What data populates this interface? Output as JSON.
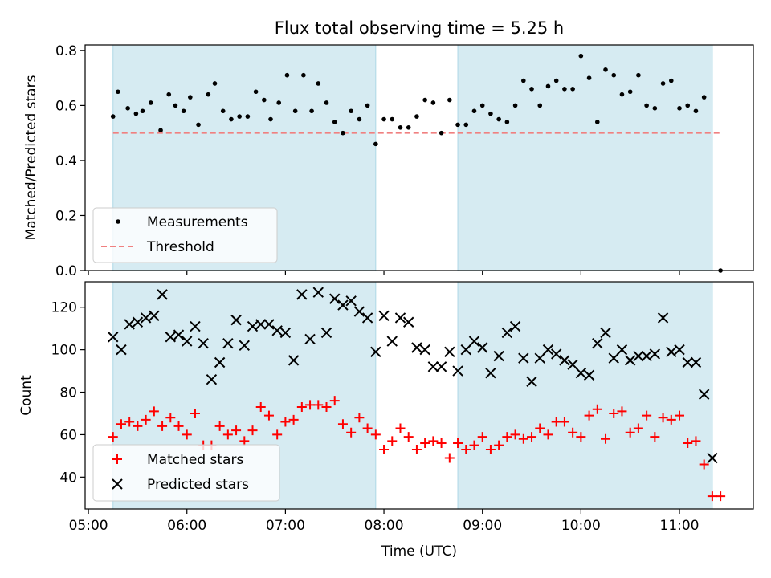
{
  "title": "Flux total observing time = 5.25 h",
  "colors": {
    "shade": "#add8e6",
    "threshold": "#f08080",
    "measurement": "#000000",
    "matched": "#ff0000",
    "predicted": "#000000"
  },
  "chart_data": [
    {
      "type": "scatter",
      "panel": "top",
      "ylabel": "Matched/Predicted stars",
      "xlabel": "",
      "xlim": [
        "04:58",
        "11:45"
      ],
      "ylim": [
        0,
        0.82
      ],
      "yticks": [
        0.0,
        0.2,
        0.4,
        0.6,
        0.8
      ],
      "ytick_labels": [
        "0.0",
        "0.2",
        "0.4",
        "0.6",
        "0.8"
      ],
      "shaded_intervals": [
        [
          "05:15",
          "07:55"
        ],
        [
          "08:45",
          "11:20"
        ]
      ],
      "legend": {
        "position": "lower-left",
        "entries": [
          "Measurements",
          "Threshold"
        ]
      },
      "threshold": {
        "name": "Threshold",
        "value": 0.5,
        "x_range": [
          "05:15",
          "11:25"
        ],
        "style": "dashed"
      },
      "series": [
        {
          "name": "Measurements",
          "marker": "dot",
          "x": [
            "05:15",
            "05:18",
            "05:24",
            "05:29",
            "05:33",
            "05:38",
            "05:44",
            "05:49",
            "05:53",
            "05:58",
            "06:02",
            "06:07",
            "06:13",
            "06:17",
            "06:22",
            "06:27",
            "06:32",
            "06:37",
            "06:42",
            "06:47",
            "06:51",
            "06:56",
            "07:01",
            "07:06",
            "07:11",
            "07:16",
            "07:20",
            "07:25",
            "07:30",
            "07:35",
            "07:40",
            "07:45",
            "07:50",
            "07:55",
            "08:00",
            "08:05",
            "08:10",
            "08:15",
            "08:20",
            "08:25",
            "08:30",
            "08:35",
            "08:40",
            "08:45",
            "08:50",
            "08:55",
            "09:00",
            "09:05",
            "09:10",
            "09:15",
            "09:20",
            "09:25",
            "09:30",
            "09:35",
            "09:40",
            "09:45",
            "09:50",
            "09:55",
            "10:00",
            "10:05",
            "10:10",
            "10:15",
            "10:20",
            "10:25",
            "10:30",
            "10:35",
            "10:40",
            "10:45",
            "10:50",
            "10:55",
            "11:00",
            "11:05",
            "11:10",
            "11:15",
            "11:25"
          ],
          "y": [
            0.56,
            0.65,
            0.59,
            0.57,
            0.58,
            0.61,
            0.51,
            0.64,
            0.6,
            0.58,
            0.63,
            0.53,
            0.64,
            0.68,
            0.58,
            0.55,
            0.56,
            0.56,
            0.65,
            0.62,
            0.55,
            0.61,
            0.71,
            0.58,
            0.71,
            0.58,
            0.68,
            0.61,
            0.54,
            0.5,
            0.58,
            0.55,
            0.6,
            0.46,
            0.55,
            0.55,
            0.52,
            0.52,
            0.56,
            0.62,
            0.61,
            0.5,
            0.62,
            0.53,
            0.53,
            0.58,
            0.6,
            0.57,
            0.55,
            0.54,
            0.6,
            0.69,
            0.66,
            0.6,
            0.67,
            0.69,
            0.66,
            0.66,
            0.78,
            0.7,
            0.54,
            0.73,
            0.71,
            0.64,
            0.65,
            0.71,
            0.6,
            0.59,
            0.68,
            0.69,
            0.59,
            0.6,
            0.58,
            0.63,
            0.0
          ]
        }
      ]
    },
    {
      "type": "scatter",
      "panel": "bottom",
      "ylabel": "Count",
      "xlabel": "Time (UTC)",
      "xlim": [
        "04:58",
        "11:45"
      ],
      "ylim": [
        25,
        132
      ],
      "yticks": [
        40,
        60,
        80,
        100,
        120
      ],
      "ytick_labels": [
        "40",
        "60",
        "80",
        "100",
        "120"
      ],
      "xticks": [
        "05:00",
        "06:00",
        "07:00",
        "08:00",
        "09:00",
        "10:00",
        "11:00"
      ],
      "xtick_labels": [
        "05:00",
        "06:00",
        "07:00",
        "08:00",
        "09:00",
        "10:00",
        "11:00"
      ],
      "shaded_intervals": [
        [
          "05:15",
          "07:55"
        ],
        [
          "08:45",
          "11:20"
        ]
      ],
      "legend": {
        "position": "lower-left",
        "entries": [
          "Matched stars",
          "Predicted stars"
        ]
      },
      "series": [
        {
          "name": "Matched stars",
          "marker": "plus",
          "x": [
            "05:15",
            "05:20",
            "05:25",
            "05:30",
            "05:35",
            "05:40",
            "05:45",
            "05:50",
            "05:55",
            "06:00",
            "06:05",
            "06:10",
            "06:15",
            "06:20",
            "06:25",
            "06:30",
            "06:35",
            "06:40",
            "06:45",
            "06:50",
            "06:55",
            "07:00",
            "07:05",
            "07:10",
            "07:15",
            "07:20",
            "07:25",
            "07:30",
            "07:35",
            "07:40",
            "07:45",
            "07:50",
            "07:55",
            "08:00",
            "08:05",
            "08:10",
            "08:15",
            "08:20",
            "08:25",
            "08:30",
            "08:35",
            "08:40",
            "08:45",
            "08:50",
            "08:55",
            "09:00",
            "09:05",
            "09:10",
            "09:15",
            "09:20",
            "09:25",
            "09:30",
            "09:35",
            "09:40",
            "09:45",
            "09:50",
            "09:55",
            "10:00",
            "10:05",
            "10:10",
            "10:15",
            "10:20",
            "10:25",
            "10:30",
            "10:35",
            "10:40",
            "10:45",
            "10:50",
            "10:55",
            "11:00",
            "11:05",
            "11:10",
            "11:15",
            "11:20",
            "11:25"
          ],
          "y": [
            59,
            65,
            66,
            64,
            67,
            71,
            64,
            68,
            64,
            60,
            70,
            55,
            55,
            64,
            60,
            62,
            57,
            62,
            73,
            69,
            60,
            66,
            67,
            73,
            74,
            74,
            73,
            76,
            65,
            61,
            68,
            63,
            60,
            53,
            57,
            63,
            59,
            53,
            56,
            57,
            56,
            49,
            56,
            53,
            55,
            59,
            53,
            55,
            59,
            60,
            58,
            59,
            63,
            60,
            66,
            66,
            61,
            59,
            69,
            72,
            58,
            70,
            71,
            61,
            63,
            69,
            59,
            68,
            67,
            69,
            56,
            57,
            46,
            31,
            31
          ]
        },
        {
          "name": "Predicted stars",
          "marker": "x",
          "x": [
            "05:15",
            "05:20",
            "05:25",
            "05:30",
            "05:35",
            "05:40",
            "05:45",
            "05:50",
            "05:55",
            "06:00",
            "06:05",
            "06:10",
            "06:15",
            "06:20",
            "06:25",
            "06:30",
            "06:35",
            "06:40",
            "06:45",
            "06:50",
            "06:55",
            "07:00",
            "07:05",
            "07:10",
            "07:15",
            "07:20",
            "07:25",
            "07:30",
            "07:35",
            "07:40",
            "07:45",
            "07:50",
            "07:55",
            "08:00",
            "08:05",
            "08:10",
            "08:15",
            "08:20",
            "08:25",
            "08:30",
            "08:35",
            "08:40",
            "08:45",
            "08:50",
            "08:55",
            "09:00",
            "09:05",
            "09:10",
            "09:15",
            "09:20",
            "09:25",
            "09:30",
            "09:35",
            "09:40",
            "09:45",
            "09:50",
            "09:55",
            "10:00",
            "10:05",
            "10:10",
            "10:15",
            "10:20",
            "10:25",
            "10:30",
            "10:35",
            "10:40",
            "10:45",
            "10:50",
            "10:55",
            "11:00",
            "11:05",
            "11:10",
            "11:15",
            "11:20"
          ],
          "y": [
            106,
            100,
            112,
            113,
            115,
            116,
            126,
            106,
            107,
            104,
            111,
            103,
            86,
            94,
            103,
            114,
            102,
            111,
            112,
            112,
            109,
            108,
            95,
            126,
            105,
            127,
            108,
            124,
            121,
            123,
            118,
            115,
            99,
            116,
            104,
            115,
            113,
            101,
            100,
            92,
            92,
            99,
            90,
            100,
            104,
            101,
            89,
            97,
            108,
            111,
            96,
            85,
            96,
            100,
            98,
            95,
            93,
            89,
            88,
            103,
            108,
            96,
            100,
            95,
            97,
            97,
            98,
            115,
            99,
            100,
            94,
            94,
            79,
            49
          ]
        }
      ]
    }
  ]
}
